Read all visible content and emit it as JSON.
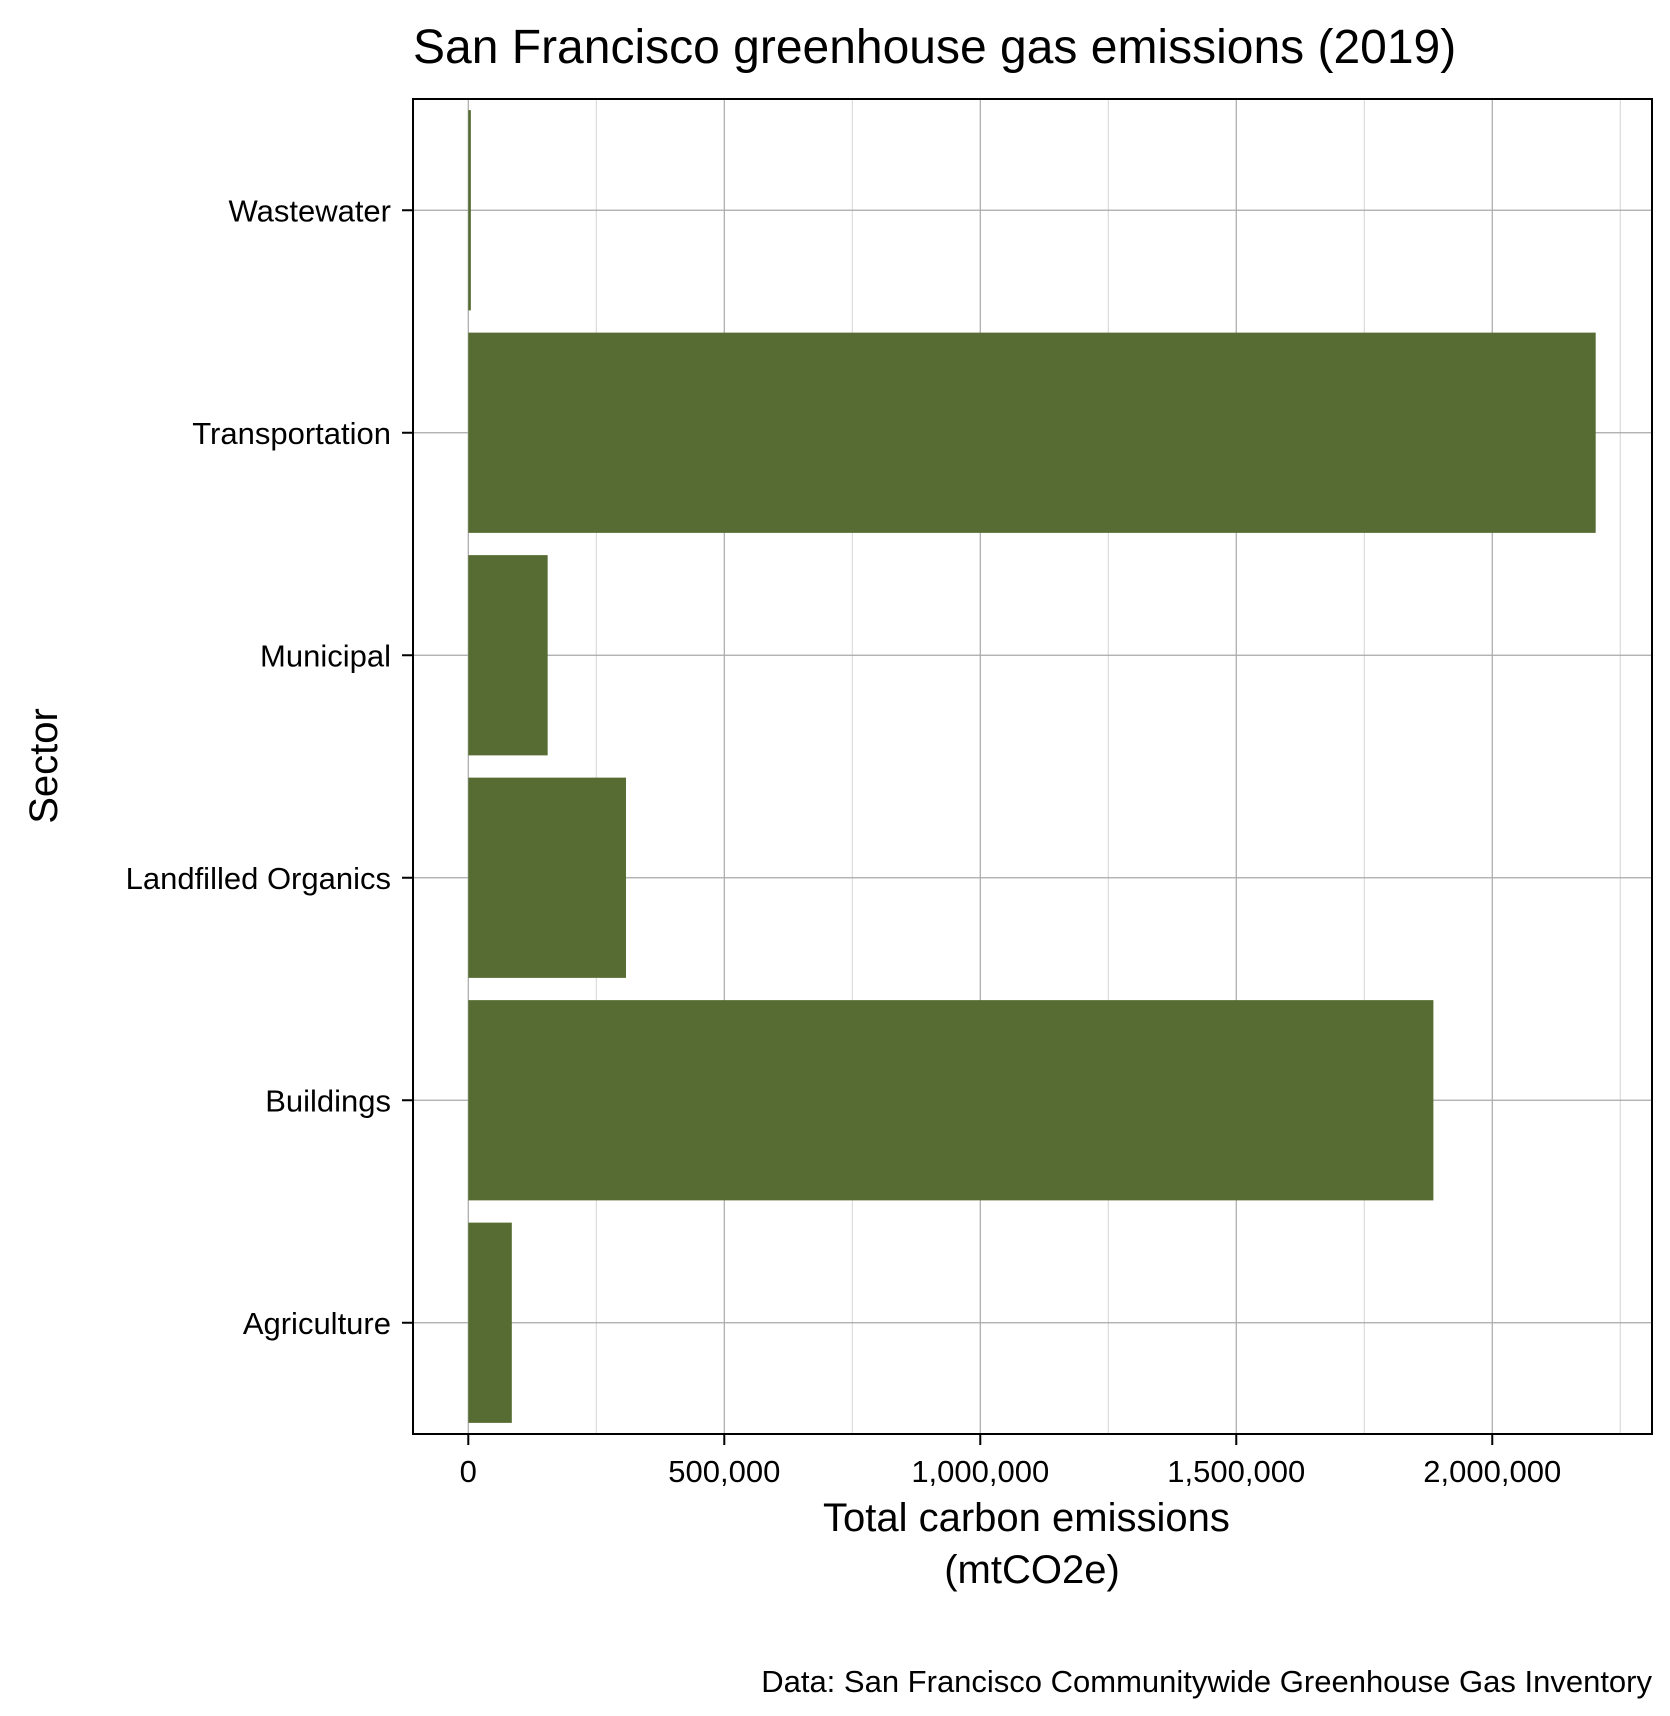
{
  "chart_data": {
    "type": "bar",
    "orientation": "horizontal",
    "title": "San Francisco greenhouse gas emissions (2019)",
    "xlabel_lines": [
      "Total carbon emissions",
      "(mtCO2e)"
    ],
    "ylabel": "Sector",
    "caption": "Data: San Francisco Communitywide Greenhouse Gas Inventory",
    "categories": [
      "Agriculture",
      "Buildings",
      "Landfilled Organics",
      "Municipal",
      "Transportation",
      "Wastewater"
    ],
    "values": [
      85000,
      1885000,
      308000,
      155000,
      2202000,
      5000
    ],
    "xlim": [
      -108000,
      2312000
    ],
    "xticks": [
      0,
      500000,
      1000000,
      1500000,
      2000000
    ],
    "xtick_labels": [
      "0",
      "500,000",
      "1,000,000",
      "1,500,000",
      "2,000,000"
    ],
    "minor_xticks": [
      250000,
      750000,
      1250000,
      1750000,
      2250000
    ],
    "bar_color": "#576c32",
    "grid": true
  }
}
